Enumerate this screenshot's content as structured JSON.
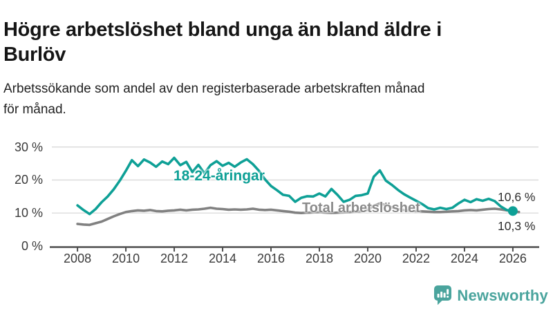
{
  "header": {
    "title": "Högre arbetslöshet bland unga än bland äldre i Burlöv",
    "subtitle": "Arbetssökande som andel av den registerbaserade arbetskraften månad för månad."
  },
  "chart_data": {
    "type": "line",
    "title": "Högre arbetslöshet bland unga än bland äldre i Burlöv",
    "subtitle": "Arbetssökande som andel av den registerbaserade arbetskraften månad för månad.",
    "x_axis": {
      "tick_values": [
        2008,
        2010,
        2012,
        2014,
        2016,
        2018,
        2020,
        2022,
        2024,
        2026
      ],
      "tick_labels": [
        "2008",
        "2010",
        "2012",
        "2014",
        "2016",
        "2018",
        "2020",
        "2022",
        "2024",
        "2026"
      ],
      "range": [
        2006.94,
        2027.06
      ]
    },
    "y_axis": {
      "tick_values": [
        0,
        10,
        20,
        30
      ],
      "tick_labels": [
        "0 %",
        "10 %",
        "20 %",
        "30 %"
      ],
      "range": [
        0,
        33.7
      ],
      "grid": true
    },
    "style": {
      "grid_color": "#d8d8d8",
      "axis_color": "#4d4d4d",
      "line_width": 3.6
    },
    "series": [
      {
        "name": "18-24-åringar",
        "color": "#0ea096",
        "end_label": "10,6 %",
        "end_dot": true,
        "x": [
          2008.0,
          2008.25,
          2008.5,
          2008.75,
          2009.0,
          2009.25,
          2009.5,
          2009.75,
          2010.0,
          2010.25,
          2010.5,
          2010.75,
          2011.0,
          2011.25,
          2011.5,
          2011.75,
          2012.0,
          2012.25,
          2012.5,
          2012.75,
          2013.0,
          2013.25,
          2013.5,
          2013.75,
          2014.0,
          2014.25,
          2014.5,
          2014.75,
          2015.0,
          2015.25,
          2015.5,
          2015.75,
          2016.0,
          2016.25,
          2016.5,
          2016.75,
          2017.0,
          2017.25,
          2017.5,
          2017.75,
          2018.0,
          2018.25,
          2018.5,
          2018.75,
          2019.0,
          2019.25,
          2019.5,
          2019.75,
          2020.0,
          2020.25,
          2020.5,
          2020.75,
          2021.0,
          2021.25,
          2021.5,
          2021.75,
          2022.0,
          2022.25,
          2022.5,
          2022.75,
          2023.0,
          2023.25,
          2023.5,
          2023.75,
          2024.0,
          2024.25,
          2024.5,
          2024.75,
          2025.0,
          2025.25,
          2025.5,
          2025.75,
          2026.0
        ],
        "values": [
          12.3,
          10.9,
          9.7,
          11.2,
          13.3,
          15.0,
          17.2,
          19.8,
          22.8,
          26.0,
          24.2,
          26.2,
          25.3,
          24.0,
          25.6,
          24.8,
          26.7,
          24.5,
          25.5,
          22.4,
          24.6,
          22.0,
          24.5,
          25.7,
          24.3,
          25.2,
          24.0,
          25.3,
          26.3,
          24.8,
          22.8,
          20.2,
          18.2,
          16.9,
          15.5,
          15.2,
          13.4,
          14.6,
          15.1,
          15.0,
          15.9,
          15.0,
          17.3,
          15.5,
          13.4,
          14.0,
          15.2,
          15.4,
          15.9,
          21.0,
          22.9,
          19.8,
          18.5,
          17.0,
          15.7,
          14.7,
          13.7,
          12.7,
          11.5,
          11.1,
          11.6,
          11.2,
          11.6,
          12.9,
          14.0,
          13.3,
          14.2,
          13.7,
          14.3,
          13.6,
          12.0,
          10.9,
          10.6
        ]
      },
      {
        "name": "Total arbetslöshet",
        "color": "#818181",
        "end_label": "10,3 %",
        "end_dot": false,
        "x": [
          2008.0,
          2008.25,
          2008.5,
          2008.75,
          2009.0,
          2009.25,
          2009.5,
          2009.75,
          2010.0,
          2010.25,
          2010.5,
          2010.75,
          2011.0,
          2011.25,
          2011.5,
          2011.75,
          2012.0,
          2012.25,
          2012.5,
          2012.75,
          2013.0,
          2013.25,
          2013.5,
          2013.75,
          2014.0,
          2014.25,
          2014.5,
          2014.75,
          2015.0,
          2015.25,
          2015.5,
          2015.75,
          2016.0,
          2016.25,
          2016.5,
          2016.75,
          2017.0,
          2017.25,
          2017.5,
          2017.75,
          2018.0,
          2018.25,
          2018.5,
          2018.75,
          2019.0,
          2019.25,
          2019.5,
          2019.75,
          2020.0,
          2020.25,
          2020.5,
          2020.75,
          2021.0,
          2021.25,
          2021.5,
          2021.75,
          2022.0,
          2022.25,
          2022.5,
          2022.75,
          2023.0,
          2023.25,
          2023.5,
          2023.75,
          2024.0,
          2024.25,
          2024.5,
          2024.75,
          2025.0,
          2025.25,
          2025.5,
          2025.75,
          2026.0,
          2026.25
        ],
        "values": [
          6.7,
          6.5,
          6.4,
          6.9,
          7.4,
          8.2,
          9.0,
          9.7,
          10.3,
          10.6,
          10.8,
          10.7,
          10.9,
          10.6,
          10.5,
          10.7,
          10.8,
          11.0,
          10.8,
          11.0,
          11.1,
          11.3,
          11.6,
          11.3,
          11.2,
          11.0,
          11.1,
          11.0,
          11.1,
          11.3,
          11.0,
          10.9,
          11.0,
          10.8,
          10.6,
          10.4,
          10.1,
          10.0,
          10.1,
          10.2,
          10.3,
          10.1,
          10.0,
          10.1,
          10.2,
          10.3,
          10.4,
          10.6,
          10.9,
          12.2,
          12.9,
          12.4,
          11.7,
          11.2,
          10.9,
          10.7,
          10.6,
          10.5,
          10.4,
          10.3,
          10.3,
          10.4,
          10.5,
          10.6,
          10.8,
          10.9,
          10.8,
          11.0,
          11.2,
          11.3,
          11.1,
          10.8,
          10.5,
          10.3
        ]
      }
    ]
  },
  "footer": {
    "brand": "Newsworthy",
    "brand_color": "#4aa49d",
    "logo_icon": "newsworthy-speech-bubble-chart-icon"
  }
}
